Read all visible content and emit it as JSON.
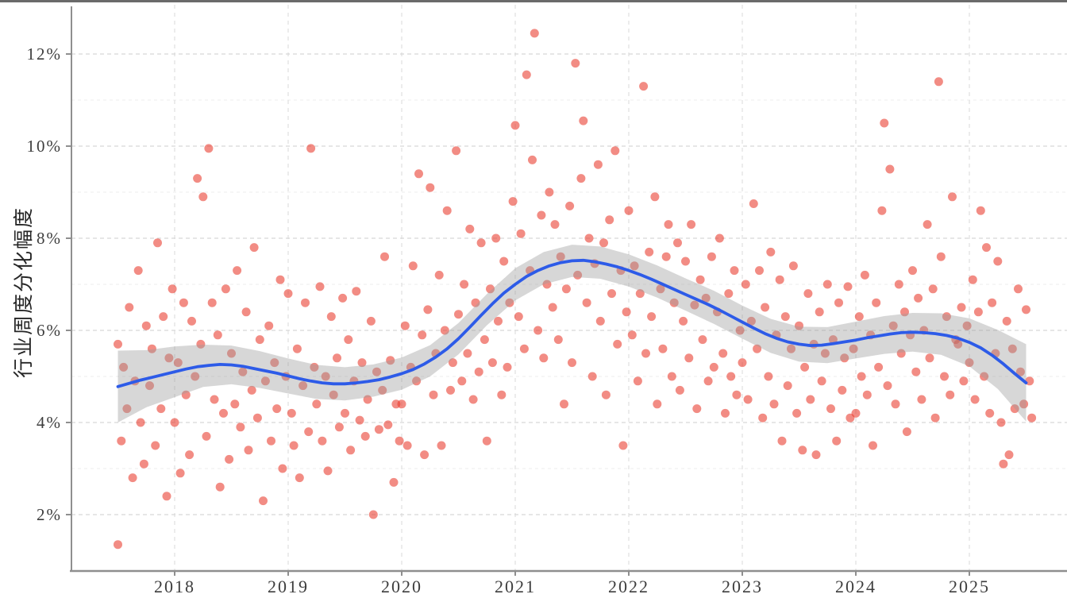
{
  "figure": {
    "ylabel": "行业周度分化幅度"
  },
  "chart_data": {
    "type": "scatter",
    "title": "",
    "xlabel": "",
    "ylabel": "行业周度分化幅度",
    "x_tick_labels": [
      "2018",
      "2019",
      "2020",
      "2021",
      "2022",
      "2023",
      "2024",
      "2025"
    ],
    "x_tick_years": [
      2018,
      2019,
      2020,
      2021,
      2022,
      2023,
      2024,
      2025
    ],
    "y_tick_labels": [
      "2%",
      "4%",
      "6%",
      "8%",
      "10%",
      "12%"
    ],
    "y_tick_values": [
      2,
      4,
      6,
      8,
      10,
      12
    ],
    "y_minor_values": [
      3,
      5,
      7,
      9,
      11
    ],
    "xlim": [
      2017.1,
      2025.9
    ],
    "ylim": [
      0.8,
      13.0
    ],
    "grid": "dashed-major-and-minor",
    "legend": "none",
    "points": [
      [
        2017.5,
        5.7
      ],
      [
        2017.5,
        1.35
      ],
      [
        2017.53,
        3.6
      ],
      [
        2017.55,
        5.2
      ],
      [
        2017.58,
        4.3
      ],
      [
        2017.6,
        6.5
      ],
      [
        2017.63,
        2.8
      ],
      [
        2017.65,
        4.9
      ],
      [
        2017.68,
        7.3
      ],
      [
        2017.7,
        4.0
      ],
      [
        2017.73,
        3.1
      ],
      [
        2017.75,
        6.1
      ],
      [
        2017.78,
        4.8
      ],
      [
        2017.8,
        5.6
      ],
      [
        2017.83,
        3.5
      ],
      [
        2017.85,
        7.9
      ],
      [
        2017.88,
        4.3
      ],
      [
        2017.9,
        6.3
      ],
      [
        2017.93,
        2.4
      ],
      [
        2017.95,
        5.4
      ],
      [
        2017.98,
        6.9
      ],
      [
        2018.0,
        4.0
      ],
      [
        2018.03,
        5.3
      ],
      [
        2018.05,
        2.9
      ],
      [
        2018.08,
        6.6
      ],
      [
        2018.1,
        4.6
      ],
      [
        2018.13,
        3.3
      ],
      [
        2018.15,
        6.2
      ],
      [
        2018.18,
        5.0
      ],
      [
        2018.2,
        9.3
      ],
      [
        2018.23,
        5.7
      ],
      [
        2018.25,
        8.9
      ],
      [
        2018.28,
        3.7
      ],
      [
        2018.3,
        9.95
      ],
      [
        2018.33,
        6.6
      ],
      [
        2018.35,
        4.5
      ],
      [
        2018.38,
        5.9
      ],
      [
        2018.4,
        2.6
      ],
      [
        2018.43,
        4.2
      ],
      [
        2018.45,
        6.9
      ],
      [
        2018.48,
        3.2
      ],
      [
        2018.5,
        5.5
      ],
      [
        2018.53,
        4.4
      ],
      [
        2018.55,
        7.3
      ],
      [
        2018.58,
        3.9
      ],
      [
        2018.6,
        5.1
      ],
      [
        2018.63,
        6.4
      ],
      [
        2018.65,
        3.4
      ],
      [
        2018.68,
        4.7
      ],
      [
        2018.7,
        7.8
      ],
      [
        2018.73,
        4.1
      ],
      [
        2018.75,
        5.8
      ],
      [
        2018.78,
        2.3
      ],
      [
        2018.8,
        4.9
      ],
      [
        2018.83,
        6.1
      ],
      [
        2018.85,
        3.6
      ],
      [
        2018.88,
        5.3
      ],
      [
        2018.9,
        4.3
      ],
      [
        2018.93,
        7.1
      ],
      [
        2018.95,
        3.0
      ],
      [
        2018.98,
        5.0
      ],
      [
        2019.0,
        6.8
      ],
      [
        2019.03,
        4.2
      ],
      [
        2019.05,
        3.5
      ],
      [
        2019.08,
        5.6
      ],
      [
        2019.1,
        2.8
      ],
      [
        2019.13,
        4.8
      ],
      [
        2019.15,
        6.6
      ],
      [
        2019.18,
        3.8
      ],
      [
        2019.2,
        9.95
      ],
      [
        2019.23,
        5.2
      ],
      [
        2019.25,
        4.4
      ],
      [
        2019.28,
        6.95
      ],
      [
        2019.3,
        3.6
      ],
      [
        2019.33,
        5.0
      ],
      [
        2019.35,
        2.95
      ],
      [
        2019.38,
        6.3
      ],
      [
        2019.4,
        4.6
      ],
      [
        2019.43,
        5.4
      ],
      [
        2019.45,
        3.9
      ],
      [
        2019.48,
        6.7
      ],
      [
        2019.5,
        4.2
      ],
      [
        2019.53,
        5.8
      ],
      [
        2019.55,
        3.4
      ],
      [
        2019.58,
        4.9
      ],
      [
        2019.6,
        6.85
      ],
      [
        2019.63,
        4.05
      ],
      [
        2019.65,
        5.3
      ],
      [
        2019.68,
        3.7
      ],
      [
        2019.7,
        4.5
      ],
      [
        2019.73,
        6.2
      ],
      [
        2019.75,
        2.0
      ],
      [
        2019.78,
        5.1
      ],
      [
        2019.8,
        3.85
      ],
      [
        2019.83,
        4.7
      ],
      [
        2019.85,
        7.6
      ],
      [
        2019.88,
        3.95
      ],
      [
        2019.9,
        5.35
      ],
      [
        2019.93,
        2.7
      ],
      [
        2019.95,
        4.4
      ],
      [
        2019.98,
        3.6
      ],
      [
        2020.0,
        4.4
      ],
      [
        2020.03,
        6.1
      ],
      [
        2020.05,
        3.5
      ],
      [
        2020.08,
        5.2
      ],
      [
        2020.1,
        7.4
      ],
      [
        2020.13,
        4.9
      ],
      [
        2020.15,
        9.4
      ],
      [
        2020.18,
        5.9
      ],
      [
        2020.2,
        3.3
      ],
      [
        2020.23,
        6.45
      ],
      [
        2020.25,
        9.1
      ],
      [
        2020.28,
        4.6
      ],
      [
        2020.3,
        5.5
      ],
      [
        2020.33,
        7.2
      ],
      [
        2020.35,
        3.5
      ],
      [
        2020.38,
        6.0
      ],
      [
        2020.4,
        8.6
      ],
      [
        2020.43,
        4.7
      ],
      [
        2020.45,
        5.3
      ],
      [
        2020.48,
        9.9
      ],
      [
        2020.5,
        6.35
      ],
      [
        2020.53,
        4.9
      ],
      [
        2020.55,
        7.0
      ],
      [
        2020.58,
        5.5
      ],
      [
        2020.6,
        8.2
      ],
      [
        2020.63,
        4.5
      ],
      [
        2020.65,
        6.6
      ],
      [
        2020.68,
        5.1
      ],
      [
        2020.7,
        7.9
      ],
      [
        2020.73,
        5.8
      ],
      [
        2020.75,
        3.6
      ],
      [
        2020.78,
        6.9
      ],
      [
        2020.8,
        5.3
      ],
      [
        2020.83,
        8.0
      ],
      [
        2020.85,
        6.2
      ],
      [
        2020.88,
        4.6
      ],
      [
        2020.9,
        7.5
      ],
      [
        2020.93,
        5.2
      ],
      [
        2020.95,
        6.6
      ],
      [
        2020.98,
        8.8
      ],
      [
        2021.0,
        10.45
      ],
      [
        2021.03,
        6.3
      ],
      [
        2021.05,
        8.1
      ],
      [
        2021.08,
        5.6
      ],
      [
        2021.1,
        11.55
      ],
      [
        2021.13,
        7.3
      ],
      [
        2021.15,
        9.7
      ],
      [
        2021.17,
        12.45
      ],
      [
        2021.2,
        6.0
      ],
      [
        2021.23,
        8.5
      ],
      [
        2021.25,
        5.4
      ],
      [
        2021.28,
        7.0
      ],
      [
        2021.3,
        9.0
      ],
      [
        2021.33,
        6.5
      ],
      [
        2021.35,
        8.3
      ],
      [
        2021.38,
        5.8
      ],
      [
        2021.4,
        7.6
      ],
      [
        2021.43,
        4.4
      ],
      [
        2021.45,
        6.9
      ],
      [
        2021.48,
        8.7
      ],
      [
        2021.5,
        5.3
      ],
      [
        2021.53,
        11.8
      ],
      [
        2021.55,
        7.2
      ],
      [
        2021.58,
        9.3
      ],
      [
        2021.6,
        10.55
      ],
      [
        2021.63,
        6.6
      ],
      [
        2021.65,
        8.0
      ],
      [
        2021.68,
        5.0
      ],
      [
        2021.7,
        7.45
      ],
      [
        2021.73,
        9.6
      ],
      [
        2021.75,
        6.2
      ],
      [
        2021.78,
        7.9
      ],
      [
        2021.8,
        4.6
      ],
      [
        2021.83,
        8.4
      ],
      [
        2021.85,
        6.8
      ],
      [
        2021.88,
        9.9
      ],
      [
        2021.9,
        5.7
      ],
      [
        2021.93,
        7.3
      ],
      [
        2021.95,
        3.5
      ],
      [
        2021.98,
        6.4
      ],
      [
        2022.0,
        8.6
      ],
      [
        2022.03,
        5.9
      ],
      [
        2022.05,
        7.4
      ],
      [
        2022.08,
        4.9
      ],
      [
        2022.1,
        6.8
      ],
      [
        2022.13,
        11.3
      ],
      [
        2022.15,
        5.5
      ],
      [
        2022.18,
        7.7
      ],
      [
        2022.2,
        6.3
      ],
      [
        2022.23,
        8.9
      ],
      [
        2022.25,
        4.4
      ],
      [
        2022.28,
        6.9
      ],
      [
        2022.3,
        5.6
      ],
      [
        2022.33,
        7.6
      ],
      [
        2022.35,
        8.3
      ],
      [
        2022.38,
        5.0
      ],
      [
        2022.4,
        6.6
      ],
      [
        2022.43,
        7.9
      ],
      [
        2022.45,
        4.7
      ],
      [
        2022.48,
        6.2
      ],
      [
        2022.5,
        7.5
      ],
      [
        2022.53,
        5.4
      ],
      [
        2022.55,
        8.3
      ],
      [
        2022.58,
        6.55
      ],
      [
        2022.6,
        4.3
      ],
      [
        2022.63,
        7.1
      ],
      [
        2022.65,
        5.8
      ],
      [
        2022.68,
        6.7
      ],
      [
        2022.7,
        4.9
      ],
      [
        2022.73,
        7.6
      ],
      [
        2022.75,
        5.2
      ],
      [
        2022.78,
        6.4
      ],
      [
        2022.8,
        8.0
      ],
      [
        2022.83,
        5.5
      ],
      [
        2022.85,
        4.2
      ],
      [
        2022.88,
        6.8
      ],
      [
        2022.9,
        5.0
      ],
      [
        2022.93,
        7.3
      ],
      [
        2022.95,
        4.6
      ],
      [
        2022.98,
        6.0
      ],
      [
        2023.0,
        5.3
      ],
      [
        2023.03,
        7.0
      ],
      [
        2023.05,
        4.5
      ],
      [
        2023.08,
        6.2
      ],
      [
        2023.1,
        8.75
      ],
      [
        2023.13,
        5.6
      ],
      [
        2023.15,
        7.3
      ],
      [
        2023.18,
        4.1
      ],
      [
        2023.2,
        6.5
      ],
      [
        2023.23,
        5.0
      ],
      [
        2023.25,
        7.7
      ],
      [
        2023.28,
        4.4
      ],
      [
        2023.3,
        5.9
      ],
      [
        2023.33,
        7.1
      ],
      [
        2023.35,
        3.6
      ],
      [
        2023.38,
        6.3
      ],
      [
        2023.4,
        4.8
      ],
      [
        2023.43,
        5.6
      ],
      [
        2023.45,
        7.4
      ],
      [
        2023.48,
        4.2
      ],
      [
        2023.5,
        6.1
      ],
      [
        2023.53,
        3.4
      ],
      [
        2023.55,
        5.2
      ],
      [
        2023.58,
        6.8
      ],
      [
        2023.6,
        4.5
      ],
      [
        2023.63,
        5.7
      ],
      [
        2023.65,
        3.3
      ],
      [
        2023.68,
        6.4
      ],
      [
        2023.7,
        4.9
      ],
      [
        2023.73,
        5.5
      ],
      [
        2023.75,
        7.0
      ],
      [
        2023.78,
        4.3
      ],
      [
        2023.8,
        5.8
      ],
      [
        2023.83,
        3.6
      ],
      [
        2023.85,
        6.6
      ],
      [
        2023.88,
        4.7
      ],
      [
        2023.9,
        5.4
      ],
      [
        2023.93,
        6.95
      ],
      [
        2023.95,
        4.1
      ],
      [
        2023.98,
        5.6
      ],
      [
        2024.0,
        4.2
      ],
      [
        2024.03,
        6.3
      ],
      [
        2024.05,
        5.0
      ],
      [
        2024.08,
        7.2
      ],
      [
        2024.1,
        4.6
      ],
      [
        2024.13,
        5.9
      ],
      [
        2024.15,
        3.5
      ],
      [
        2024.18,
        6.6
      ],
      [
        2024.2,
        5.2
      ],
      [
        2024.23,
        8.6
      ],
      [
        2024.25,
        10.5
      ],
      [
        2024.28,
        4.8
      ],
      [
        2024.3,
        9.5
      ],
      [
        2024.33,
        6.1
      ],
      [
        2024.35,
        4.4
      ],
      [
        2024.38,
        7.0
      ],
      [
        2024.4,
        5.5
      ],
      [
        2024.43,
        6.4
      ],
      [
        2024.45,
        3.8
      ],
      [
        2024.48,
        5.9
      ],
      [
        2024.5,
        7.3
      ],
      [
        2024.53,
        5.1
      ],
      [
        2024.55,
        6.7
      ],
      [
        2024.58,
        4.5
      ],
      [
        2024.6,
        6.0
      ],
      [
        2024.63,
        8.3
      ],
      [
        2024.65,
        5.4
      ],
      [
        2024.68,
        6.9
      ],
      [
        2024.7,
        4.1
      ],
      [
        2024.73,
        11.4
      ],
      [
        2024.75,
        7.6
      ],
      [
        2024.78,
        5.0
      ],
      [
        2024.8,
        6.3
      ],
      [
        2024.83,
        4.6
      ],
      [
        2024.85,
        8.9
      ],
      [
        2024.88,
        5.8
      ],
      [
        2024.9,
        5.7
      ],
      [
        2024.93,
        6.5
      ],
      [
        2024.95,
        4.9
      ],
      [
        2024.98,
        6.1
      ],
      [
        2025.0,
        5.3
      ],
      [
        2025.03,
        7.1
      ],
      [
        2025.05,
        4.5
      ],
      [
        2025.08,
        6.4
      ],
      [
        2025.1,
        8.6
      ],
      [
        2025.13,
        5.0
      ],
      [
        2025.15,
        7.8
      ],
      [
        2025.18,
        4.2
      ],
      [
        2025.2,
        6.6
      ],
      [
        2025.23,
        5.5
      ],
      [
        2025.25,
        7.5
      ],
      [
        2025.28,
        4.0
      ],
      [
        2025.3,
        3.1
      ],
      [
        2025.33,
        6.2
      ],
      [
        2025.35,
        3.3
      ],
      [
        2025.38,
        5.6
      ],
      [
        2025.4,
        4.3
      ],
      [
        2025.43,
        6.9
      ],
      [
        2025.45,
        5.1
      ],
      [
        2025.48,
        4.4
      ],
      [
        2025.5,
        6.45
      ],
      [
        2025.53,
        4.9
      ],
      [
        2025.55,
        4.1
      ]
    ],
    "trend": {
      "label": "smoothed-trend-line",
      "x_start": 2017.5,
      "x_step": 0.1,
      "y": [
        4.78,
        4.85,
        4.92,
        4.98,
        5.04,
        5.1,
        5.16,
        5.21,
        5.24,
        5.26,
        5.25,
        5.22,
        5.17,
        5.12,
        5.07,
        5.01,
        4.95,
        4.9,
        4.86,
        4.84,
        4.84,
        4.86,
        4.89,
        4.93,
        4.99,
        5.06,
        5.15,
        5.27,
        5.42,
        5.6,
        5.82,
        6.07,
        6.33,
        6.58,
        6.81,
        7.0,
        7.17,
        7.3,
        7.4,
        7.47,
        7.51,
        7.52,
        7.49,
        7.44,
        7.38,
        7.3,
        7.21,
        7.11,
        7.0,
        6.89,
        6.78,
        6.67,
        6.56,
        6.44,
        6.31,
        6.18,
        6.05,
        5.93,
        5.83,
        5.75,
        5.7,
        5.67,
        5.68,
        5.71,
        5.75,
        5.79,
        5.84,
        5.88,
        5.92,
        5.95,
        5.96,
        5.95,
        5.93,
        5.89,
        5.83,
        5.74,
        5.62,
        5.46,
        5.27,
        5.06,
        4.86
      ]
    },
    "band": {
      "label": "confidence-band",
      "x_start": 2017.5,
      "x_step": 0.25,
      "upper": [
        5.56,
        5.57,
        5.65,
        5.69,
        5.67,
        5.55,
        5.39,
        5.25,
        5.2,
        5.26,
        5.41,
        5.68,
        6.16,
        6.79,
        7.35,
        7.7,
        7.86,
        7.82,
        7.65,
        7.41,
        7.13,
        6.86,
        6.54,
        6.25,
        6.08,
        6.07,
        6.19,
        6.31,
        6.38,
        6.37,
        6.26,
        6.01,
        5.7
      ],
      "lower": [
        4.0,
        4.33,
        4.55,
        4.77,
        4.83,
        4.75,
        4.63,
        4.51,
        4.48,
        4.56,
        4.71,
        5.0,
        5.48,
        6.11,
        6.65,
        7.0,
        7.16,
        7.12,
        6.95,
        6.71,
        6.43,
        6.14,
        5.82,
        5.51,
        5.32,
        5.29,
        5.39,
        5.49,
        5.54,
        5.47,
        5.22,
        4.73,
        4.02
      ]
    }
  },
  "style": {
    "point_color": "#e8392b",
    "point_opacity": 0.58,
    "point_radius": 5.5,
    "line_color": "#2d5be8",
    "band_color": "#9a9a9a",
    "band_opacity": 0.4,
    "grid_major_color": "#d8d8d8",
    "grid_minor_color": "#ececec",
    "grid_vert_color": "#e2e2e2",
    "axis_color": "#8f8f8f",
    "top_rule_color": "#6a6a6a",
    "tick_label_color": "#3d3d3d",
    "ylabel_color": "#262626"
  }
}
